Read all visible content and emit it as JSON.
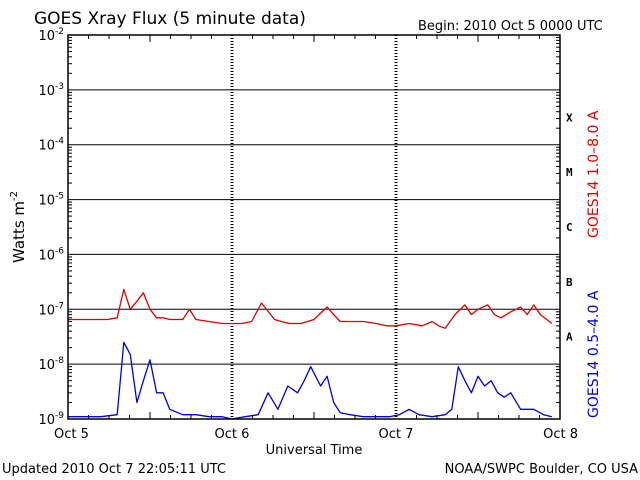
{
  "chart_data": {
    "type": "line",
    "title": "GOES Xray Flux (5 minute data)",
    "begin_label": "Begin:  2010 Oct 5 0000 UTC",
    "xlabel": "Universal Time",
    "ylabel_base": "Watts m",
    "ylabel_exp": "-2",
    "y_scale": "log",
    "ylim": [
      1e-09,
      0.01
    ],
    "xlim_days": [
      0,
      3
    ],
    "grid": true,
    "x_ticks": [
      {
        "day": 0,
        "label": "Oct 5"
      },
      {
        "day": 1,
        "label": "Oct 6"
      },
      {
        "day": 2,
        "label": "Oct 7"
      },
      {
        "day": 3,
        "label": "Oct 8"
      }
    ],
    "y_ticks": [
      {
        "exp": -2,
        "base": "10",
        "sup": "-2"
      },
      {
        "exp": -3,
        "base": "10",
        "sup": "-3"
      },
      {
        "exp": -4,
        "base": "10",
        "sup": "-4"
      },
      {
        "exp": -5,
        "base": "10",
        "sup": "-5"
      },
      {
        "exp": -6,
        "base": "10",
        "sup": "-6"
      },
      {
        "exp": -7,
        "base": "10",
        "sup": "-7"
      },
      {
        "exp": -8,
        "base": "10",
        "sup": "-8"
      },
      {
        "exp": -9,
        "base": "10",
        "sup": "-9"
      }
    ],
    "flare_classes": [
      {
        "label": "X",
        "exp": -3.5
      },
      {
        "label": "M",
        "exp": -4.5
      },
      {
        "label": "C",
        "exp": -5.5
      },
      {
        "label": "B",
        "exp": -6.5
      },
      {
        "label": "A",
        "exp": -7.5
      }
    ],
    "series": [
      {
        "name": "GOES14 1.0–8.0 A",
        "color": "#e00000",
        "x": [
          0.0,
          0.08,
          0.16,
          0.24,
          0.3,
          0.34,
          0.38,
          0.42,
          0.46,
          0.5,
          0.54,
          0.58,
          0.62,
          0.7,
          0.74,
          0.78,
          0.86,
          0.94,
          1.0,
          1.06,
          1.12,
          1.18,
          1.26,
          1.3,
          1.35,
          1.42,
          1.5,
          1.58,
          1.62,
          1.66,
          1.72,
          1.8,
          1.88,
          1.94,
          2.0,
          2.08,
          2.16,
          2.22,
          2.26,
          2.3,
          2.36,
          2.42,
          2.46,
          2.5,
          2.56,
          2.6,
          2.64,
          2.7,
          2.76,
          2.8,
          2.84,
          2.88,
          2.92,
          2.95
        ],
        "y": [
          6.5e-08,
          6.5e-08,
          6.5e-08,
          6.5e-08,
          7e-08,
          2.3e-07,
          1e-07,
          1.4e-07,
          2e-07,
          1e-07,
          7e-08,
          7e-08,
          6.5e-08,
          6.5e-08,
          1e-07,
          6.5e-08,
          6e-08,
          5.5e-08,
          5.5e-08,
          5.5e-08,
          6e-08,
          1.3e-07,
          6.5e-08,
          6e-08,
          5.5e-08,
          5.5e-08,
          6.5e-08,
          1.1e-07,
          8e-08,
          6e-08,
          6e-08,
          6e-08,
          5.5e-08,
          5e-08,
          5e-08,
          5.5e-08,
          5e-08,
          6e-08,
          5e-08,
          4.5e-08,
          8e-08,
          1.2e-07,
          8e-08,
          1e-07,
          1.2e-07,
          8e-08,
          7e-08,
          9e-08,
          1.1e-07,
          8e-08,
          1.2e-07,
          8e-08,
          6.5e-08,
          5.5e-08
        ]
      },
      {
        "name": "GOES14 0.5–4.0 A",
        "color": "#0000e0",
        "x": [
          0.0,
          0.1,
          0.2,
          0.3,
          0.34,
          0.38,
          0.42,
          0.46,
          0.5,
          0.54,
          0.58,
          0.62,
          0.7,
          0.78,
          0.86,
          0.94,
          1.0,
          1.08,
          1.16,
          1.22,
          1.28,
          1.34,
          1.4,
          1.44,
          1.48,
          1.54,
          1.58,
          1.62,
          1.66,
          1.72,
          1.8,
          1.88,
          1.96,
          2.02,
          2.08,
          2.14,
          2.22,
          2.3,
          2.34,
          2.38,
          2.42,
          2.46,
          2.5,
          2.54,
          2.58,
          2.62,
          2.66,
          2.7,
          2.76,
          2.84,
          2.9,
          2.95
        ],
        "y": [
          1.1e-09,
          1.1e-09,
          1.1e-09,
          1.2e-09,
          2.5e-08,
          1.5e-08,
          2e-09,
          5e-09,
          1.2e-08,
          3e-09,
          3e-09,
          1.5e-09,
          1.2e-09,
          1.2e-09,
          1.1e-09,
          1.1e-09,
          1e-09,
          1.1e-09,
          1.2e-09,
          3e-09,
          1.5e-09,
          4e-09,
          3e-09,
          5e-09,
          9e-09,
          4e-09,
          6e-09,
          2e-09,
          1.3e-09,
          1.2e-09,
          1.1e-09,
          1.1e-09,
          1.1e-09,
          1.2e-09,
          1.5e-09,
          1.2e-09,
          1.1e-09,
          1.2e-09,
          1.5e-09,
          9e-09,
          5e-09,
          3e-09,
          6e-09,
          4e-09,
          5e-09,
          3e-09,
          2.5e-09,
          3e-09,
          1.5e-09,
          1.5e-09,
          1.2e-09,
          1.1e-09
        ]
      }
    ]
  },
  "footer": {
    "updated": "Updated 2010 Oct  7 22:05:11 UTC",
    "credit": "NOAA/SWPC Boulder, CO USA"
  }
}
